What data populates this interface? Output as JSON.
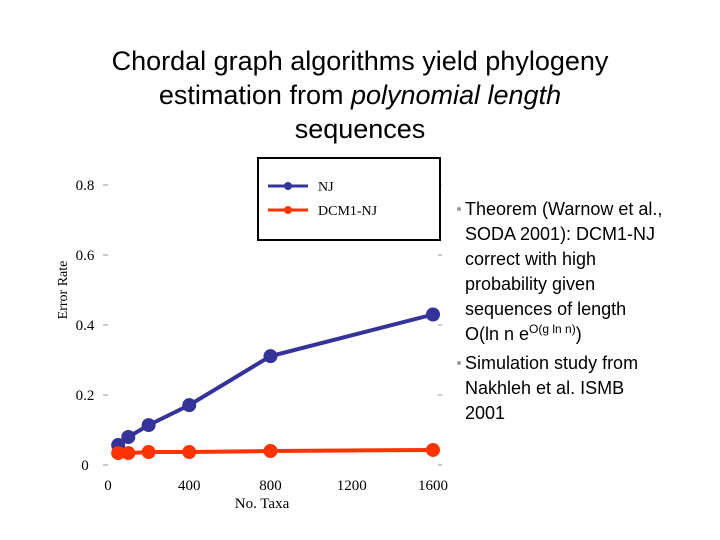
{
  "title": {
    "line1": "Chordal graph algorithms yield phylogeny",
    "line2_before": "estimation from ",
    "line2_italic": "polynomial length",
    "line3": "sequences"
  },
  "chart_data": {
    "type": "line",
    "x_label": "No. Taxa",
    "y_label": "Error Rate",
    "xlim": [
      0,
      1600
    ],
    "xticks": [
      0,
      400,
      800,
      1200,
      1600
    ],
    "ylim": [
      0,
      0.85
    ],
    "yticks": [
      0,
      0.2,
      0.4,
      0.6,
      0.8
    ],
    "x": [
      50,
      100,
      200,
      400,
      800,
      1600
    ],
    "series": [
      {
        "name": "NJ",
        "color": "#333399",
        "values": [
          0.057,
          0.08,
          0.114,
          0.171,
          0.311,
          0.43
        ]
      },
      {
        "name": "DCM1-NJ",
        "color": "#ff3300",
        "values": [
          0.034,
          0.034,
          0.037,
          0.037,
          0.04,
          0.043
        ]
      }
    ]
  },
  "bullets": [
    {
      "lines": [
        "Theorem (Warnow et al.,",
        "SODA 2001): DCM1-NJ",
        "correct with high",
        "probability given",
        "sequences of length"
      ],
      "formula": {
        "base": "O(ln n e",
        "sup": "O(g ln n)",
        "close": ")"
      }
    },
    {
      "lines": [
        "Simulation study from",
        "Nakhleh et al. ISMB",
        "2001"
      ]
    }
  ]
}
